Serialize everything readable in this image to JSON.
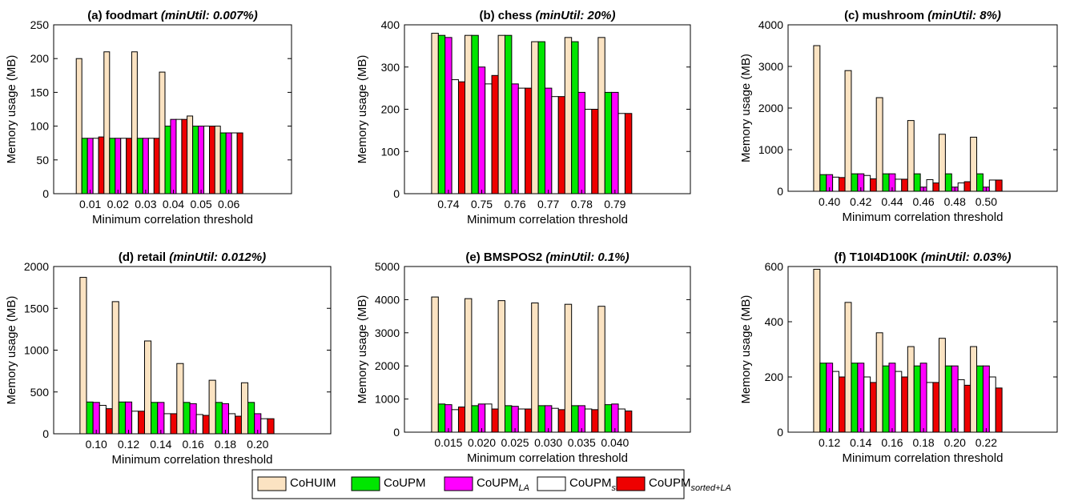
{
  "figure": {
    "legend": {
      "placement": "bottom-center",
      "entries": [
        {
          "series_index": 0,
          "base": "CoHUIM",
          "sub": ""
        },
        {
          "series_index": 1,
          "base": "CoUPM",
          "sub": ""
        },
        {
          "series_index": 2,
          "base": "CoUPM",
          "sub": "LA"
        },
        {
          "series_index": 3,
          "base": "CoUPM",
          "sub": "sorted"
        },
        {
          "series_index": 4,
          "base": "CoUPM",
          "sub": "sorted+LA"
        }
      ]
    }
  },
  "series_styles": [
    {
      "name": "CoHUIM",
      "color": "#fbe3c2"
    },
    {
      "name": "CoUPM",
      "color": "#00e600"
    },
    {
      "name": "CoUPM_LA",
      "color": "#ff00ff"
    },
    {
      "name": "CoUPM_sorted",
      "color": "#ffffff"
    },
    {
      "name": "CoUPM_sorted+LA",
      "color": "#ee0000"
    }
  ],
  "chart_data": [
    {
      "type": "bar",
      "title": "(a) foodmart ",
      "title_italic": "(minUtil: 0.007%)",
      "xlabel": "Minimum correlation threshold",
      "ylabel": "Memory usage (MB)",
      "categories": [
        "0.01",
        "0.02",
        "0.03",
        "0.04",
        "0.05",
        "0.06"
      ],
      "ylim": [
        0,
        250
      ],
      "yticks": [
        "0",
        "50",
        "100",
        "150",
        "200",
        "250"
      ],
      "series": [
        {
          "name": "CoHUIM",
          "values": [
            200,
            210,
            210,
            180,
            115,
            100
          ]
        },
        {
          "name": "CoUPM",
          "values": [
            82,
            82,
            82,
            100,
            100,
            90
          ]
        },
        {
          "name": "CoUPM_LA",
          "values": [
            82,
            82,
            82,
            110,
            100,
            90
          ]
        },
        {
          "name": "CoUPM_sorted",
          "values": [
            82,
            82,
            82,
            110,
            100,
            90
          ]
        },
        {
          "name": "CoUPM_sorted+LA",
          "values": [
            84,
            82,
            82,
            110,
            100,
            90
          ]
        }
      ]
    },
    {
      "type": "bar",
      "title": "(b) chess ",
      "title_italic": "(minUtil: 20%)",
      "xlabel": "Minimum correlation threshold",
      "ylabel": "Memory usage (MB)",
      "categories": [
        "0.74",
        "0.75",
        "0.76",
        "0.77",
        "0.78",
        "0.79"
      ],
      "ylim": [
        0,
        400
      ],
      "yticks": [
        "0",
        "100",
        "200",
        "300",
        "400"
      ],
      "series": [
        {
          "name": "CoHUIM",
          "values": [
            380,
            375,
            375,
            360,
            370,
            370
          ]
        },
        {
          "name": "CoUPM",
          "values": [
            375,
            375,
            375,
            360,
            360,
            240
          ]
        },
        {
          "name": "CoUPM_LA",
          "values": [
            370,
            300,
            260,
            250,
            240,
            240
          ]
        },
        {
          "name": "CoUPM_sorted",
          "values": [
            270,
            260,
            250,
            230,
            200,
            190
          ]
        },
        {
          "name": "CoUPM_sorted+LA",
          "values": [
            265,
            280,
            250,
            230,
            200,
            190
          ]
        }
      ]
    },
    {
      "type": "bar",
      "title": "(c) mushroom ",
      "title_italic": "(minUtil: 8%)",
      "xlabel": "Minimum correlation threshold",
      "ylabel": "Memory usage (MB)",
      "categories": [
        "0.40",
        "0.42",
        "0.44",
        "0.46",
        "0.48",
        "0.50"
      ],
      "ylim": [
        0,
        4000
      ],
      "yticks": [
        "0",
        "1000",
        "2000",
        "3000",
        "4000"
      ],
      "series": [
        {
          "name": "CoHUIM",
          "values": [
            3500,
            2900,
            2250,
            1700,
            1370,
            1300
          ]
        },
        {
          "name": "CoUPM",
          "values": [
            400,
            420,
            420,
            420,
            420,
            420
          ]
        },
        {
          "name": "CoUPM_LA",
          "values": [
            400,
            420,
            420,
            100,
            100,
            100
          ]
        },
        {
          "name": "CoUPM_sorted",
          "values": [
            340,
            380,
            290,
            280,
            200,
            270
          ]
        },
        {
          "name": "CoUPM_sorted+LA",
          "values": [
            330,
            300,
            290,
            200,
            230,
            270
          ]
        }
      ]
    },
    {
      "type": "bar",
      "title": "(d) retail ",
      "title_italic": "(minUtil: 0.012%)",
      "xlabel": "Minimum correlation threshold",
      "ylabel": "Memory usage (MB)",
      "categories": [
        "0.10",
        "0.12",
        "0.14",
        "0.16",
        "0.18",
        "0.20"
      ],
      "ylim": [
        0,
        2000
      ],
      "yticks": [
        "0",
        "500",
        "1000",
        "1500",
        "2000"
      ],
      "series": [
        {
          "name": "CoHUIM",
          "values": [
            1870,
            1580,
            1110,
            840,
            640,
            610
          ]
        },
        {
          "name": "CoUPM",
          "values": [
            380,
            380,
            375,
            375,
            375,
            375
          ]
        },
        {
          "name": "CoUPM_LA",
          "values": [
            375,
            380,
            375,
            360,
            360,
            240
          ]
        },
        {
          "name": "CoUPM_sorted",
          "values": [
            340,
            270,
            240,
            230,
            240,
            180
          ]
        },
        {
          "name": "CoUPM_sorted+LA",
          "values": [
            300,
            270,
            240,
            220,
            210,
            180
          ]
        }
      ]
    },
    {
      "type": "bar",
      "title": "(e) BMSPOS2 ",
      "title_italic": "(minUtil: 0.1%)",
      "xlabel": "Minimum correlation threshold",
      "ylabel": "Memory usage (MB)",
      "categories": [
        "0.015",
        "0.020",
        "0.025",
        "0.030",
        "0.035",
        "0.040"
      ],
      "ylim": [
        0,
        5000
      ],
      "yticks": [
        "0",
        "1000",
        "2000",
        "3000",
        "4000",
        "5000"
      ],
      "series": [
        {
          "name": "CoHUIM",
          "values": [
            4080,
            4030,
            3970,
            3900,
            3860,
            3800
          ]
        },
        {
          "name": "CoUPM",
          "values": [
            850,
            800,
            800,
            800,
            800,
            830
          ]
        },
        {
          "name": "CoUPM_LA",
          "values": [
            830,
            850,
            780,
            800,
            800,
            850
          ]
        },
        {
          "name": "CoUPM_sorted",
          "values": [
            680,
            850,
            700,
            720,
            700,
            700
          ]
        },
        {
          "name": "CoUPM_sorted+LA",
          "values": [
            760,
            700,
            700,
            680,
            680,
            640
          ]
        }
      ]
    },
    {
      "type": "bar",
      "title": "(f) T10I4D100K ",
      "title_italic": "(minUtil: 0.03%)",
      "xlabel": "Minimum correlation threshold",
      "ylabel": "Memory usage (MB)",
      "categories": [
        "0.12",
        "0.14",
        "0.16",
        "0.18",
        "0.20",
        "0.22"
      ],
      "ylim": [
        0,
        600
      ],
      "yticks": [
        "0",
        "200",
        "400",
        "600"
      ],
      "series": [
        {
          "name": "CoHUIM",
          "values": [
            590,
            470,
            360,
            310,
            340,
            310
          ]
        },
        {
          "name": "CoUPM",
          "values": [
            250,
            250,
            240,
            240,
            240,
            240
          ]
        },
        {
          "name": "CoUPM_LA",
          "values": [
            250,
            250,
            250,
            250,
            240,
            240
          ]
        },
        {
          "name": "CoUPM_sorted",
          "values": [
            220,
            200,
            220,
            180,
            190,
            200
          ]
        },
        {
          "name": "CoUPM_sorted+LA",
          "values": [
            200,
            180,
            200,
            180,
            170,
            160
          ]
        }
      ]
    }
  ]
}
